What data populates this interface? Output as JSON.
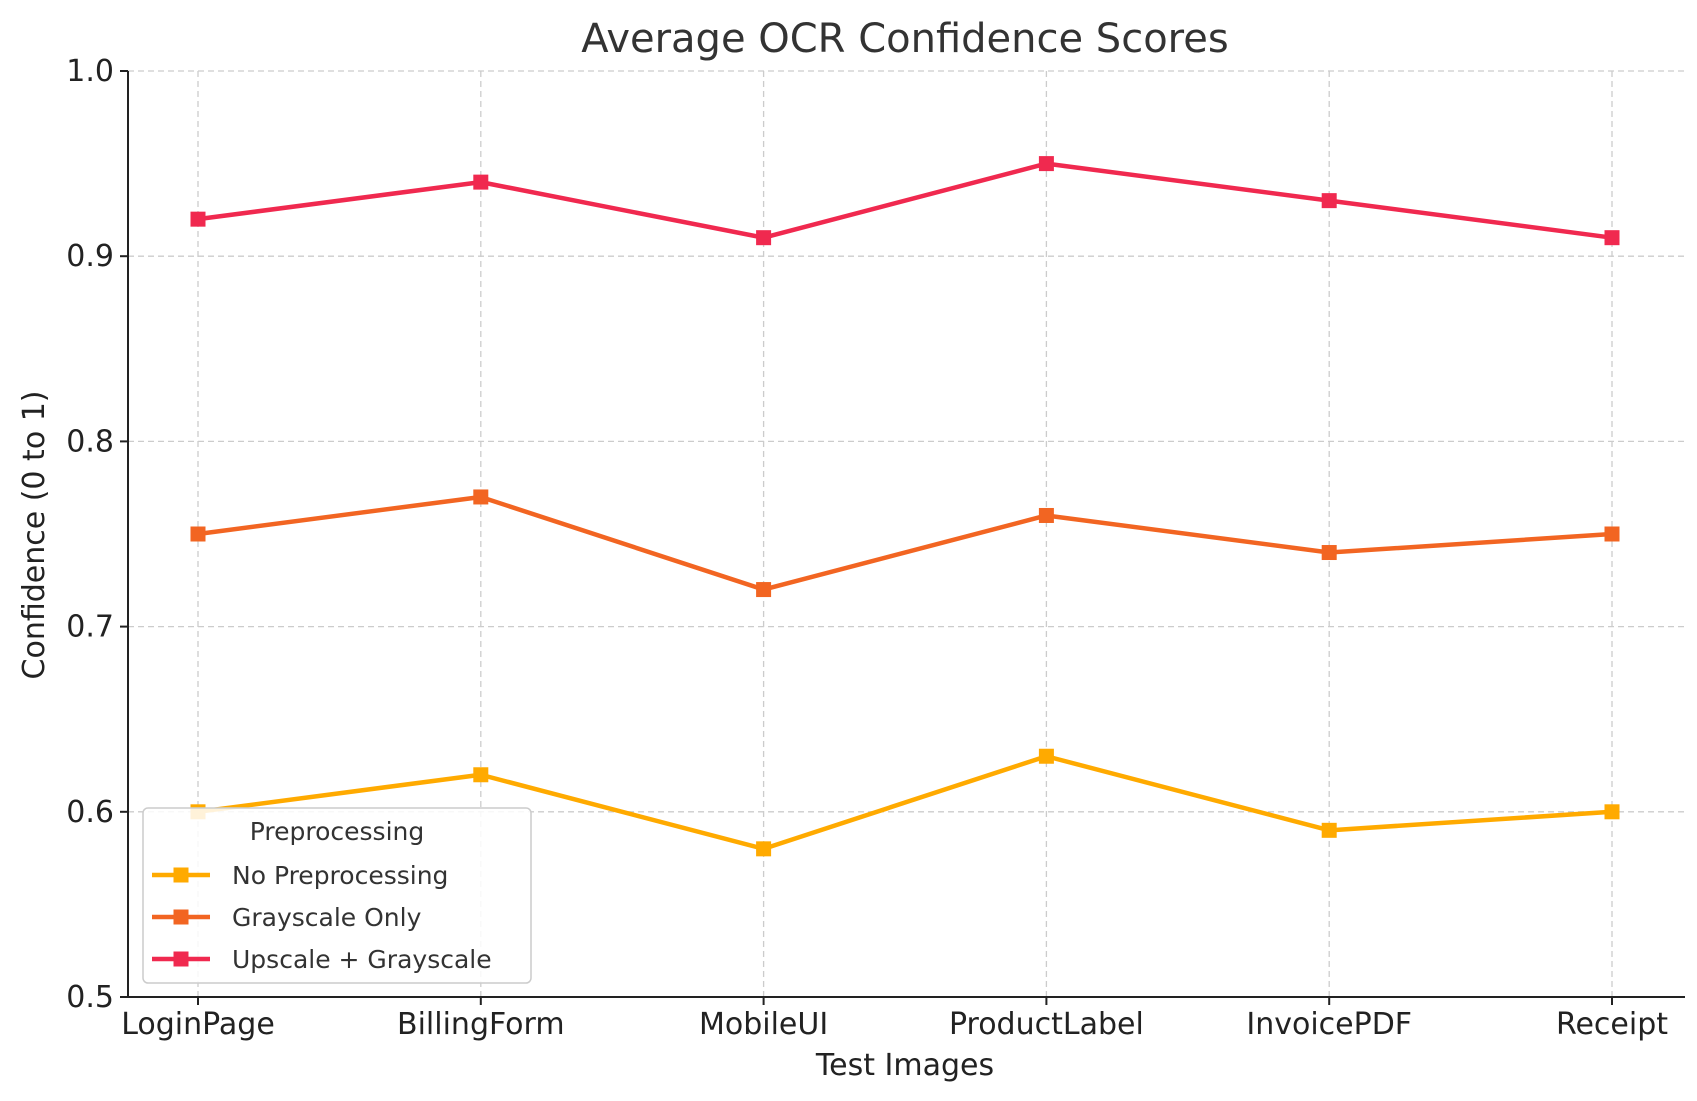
{
  "chart_data": {
    "type": "line",
    "title": "Average OCR Confidence Scores",
    "xlabel": "Test Images",
    "ylabel": "Confidence (0 to 1)",
    "categories": [
      "LoginPage",
      "BillingForm",
      "MobileUI",
      "ProductLabel",
      "InvoicePDF",
      "Receipt"
    ],
    "ylim": [
      0.5,
      1.0
    ],
    "yticks": [
      "0.5",
      "0.6",
      "0.7",
      "0.8",
      "0.9",
      "1.0"
    ],
    "grid": true,
    "legend": {
      "title": "Preprocessing",
      "placement": "lower-left"
    },
    "series": [
      {
        "name": "No Preprocessing",
        "color": "#FFAA00",
        "marker": "square",
        "values": [
          0.6,
          0.62,
          0.58,
          0.63,
          0.59,
          0.6
        ]
      },
      {
        "name": "Grayscale Only",
        "color": "#F26522",
        "marker": "square",
        "values": [
          0.75,
          0.77,
          0.72,
          0.76,
          0.74,
          0.75
        ]
      },
      {
        "name": "Upscale + Grayscale",
        "color": "#F0294F",
        "marker": "square",
        "values": [
          0.92,
          0.94,
          0.91,
          0.95,
          0.93,
          0.91
        ]
      }
    ]
  }
}
